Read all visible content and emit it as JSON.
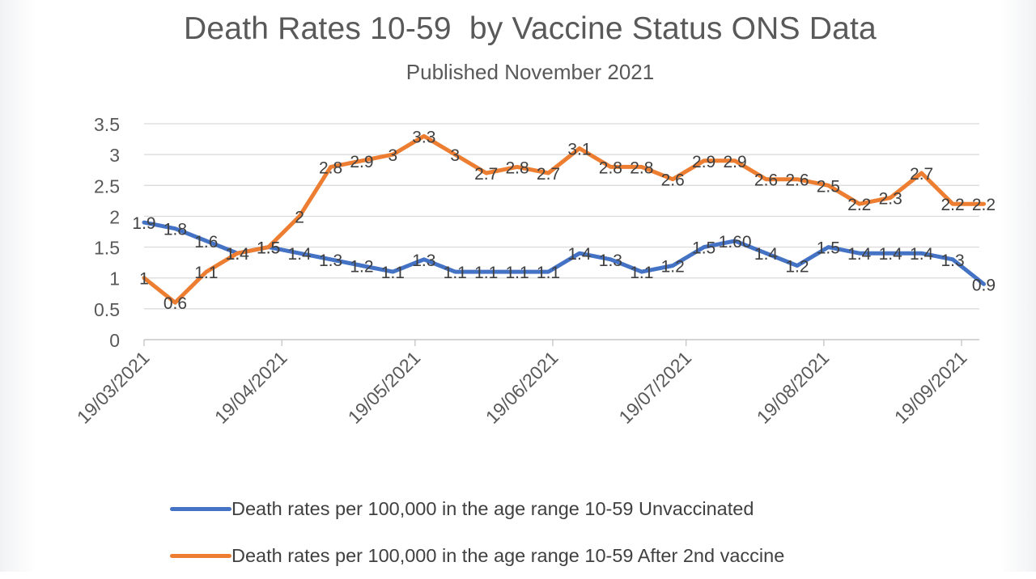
{
  "chart_data": {
    "type": "line",
    "title": "Death Rates 10-59  by Vaccine Status ONS Data",
    "subtitle": "Published November 2021",
    "xlabel": "",
    "ylabel": "",
    "ylim": [
      0,
      3.5
    ],
    "yticks": [
      "0",
      "0.5",
      "1",
      "1.5",
      "2",
      "2.5",
      "3",
      "3.5"
    ],
    "xlim": [
      "2021-03-19",
      "2021-09-23"
    ],
    "xticks": [
      "19/03/2021",
      "19/04/2021",
      "19/05/2021",
      "19/06/2021",
      "19/07/2021",
      "19/08/2021",
      "19/09/2021"
    ],
    "x": [
      "2021-03-19",
      "2021-03-26",
      "2021-04-02",
      "2021-04-09",
      "2021-04-16",
      "2021-04-23",
      "2021-04-30",
      "2021-05-07",
      "2021-05-14",
      "2021-05-21",
      "2021-05-28",
      "2021-06-04",
      "2021-06-11",
      "2021-06-18",
      "2021-06-25",
      "2021-07-02",
      "2021-07-09",
      "2021-07-16",
      "2021-07-23",
      "2021-07-30",
      "2021-08-06",
      "2021-08-13",
      "2021-08-20",
      "2021-08-27",
      "2021-09-03",
      "2021-09-10",
      "2021-09-17",
      "2021-09-24"
    ],
    "grid": true,
    "legend_position": "bottom",
    "series": [
      {
        "name": "Death rates per 100,000 in the age range 10-59 Unvaccinated",
        "color": "#4472c4",
        "values": [
          1.9,
          1.8,
          1.6,
          1.4,
          1.5,
          1.4,
          1.3,
          1.2,
          1.1,
          1.3,
          1.1,
          1.1,
          1.1,
          1.1,
          1.4,
          1.3,
          1.1,
          1.2,
          1.5,
          1.6,
          1.4,
          1.2,
          1.5,
          1.4,
          1.4,
          1.4,
          1.3,
          0.9
        ],
        "labels": [
          "1.9",
          "1.8",
          "1.6",
          "1.4",
          "1.5",
          "1.4",
          "1.3",
          "1.2",
          "1.1",
          "1.3",
          "1.1",
          "1.1",
          "1.1",
          "1.1",
          "1.4",
          "1.3",
          "1.1",
          "1.2",
          "1.5",
          "1.60",
          "1.4",
          "1.2",
          "1.5",
          "1.4",
          "1.4",
          "1.4",
          "1.3",
          "0.9"
        ]
      },
      {
        "name": "Death rates per 100,000 in the age range 10-59 After 2nd  vaccine",
        "color": "#ed7d31",
        "values": [
          1,
          0.6,
          1.1,
          1.4,
          1.5,
          2,
          2.8,
          2.9,
          3,
          3.3,
          3,
          2.7,
          2.8,
          2.7,
          3.1,
          2.8,
          2.8,
          2.6,
          2.9,
          2.9,
          2.6,
          2.6,
          2.5,
          2.2,
          2.3,
          2.7,
          2.2,
          2.2
        ],
        "labels": [
          "1",
          "0.6",
          "1.1",
          "1.4",
          "1.5",
          "2",
          "2.8",
          "2.9",
          "3",
          "3.3",
          "3",
          "2.7",
          "2.8",
          "2.7",
          "3.1",
          "2.8",
          "2.8",
          "2.6",
          "2.9",
          "2.9",
          "2.6",
          "2.6",
          "2.5",
          "2.2",
          "2.3",
          "2.7",
          "2.2",
          "2.2"
        ]
      }
    ]
  }
}
